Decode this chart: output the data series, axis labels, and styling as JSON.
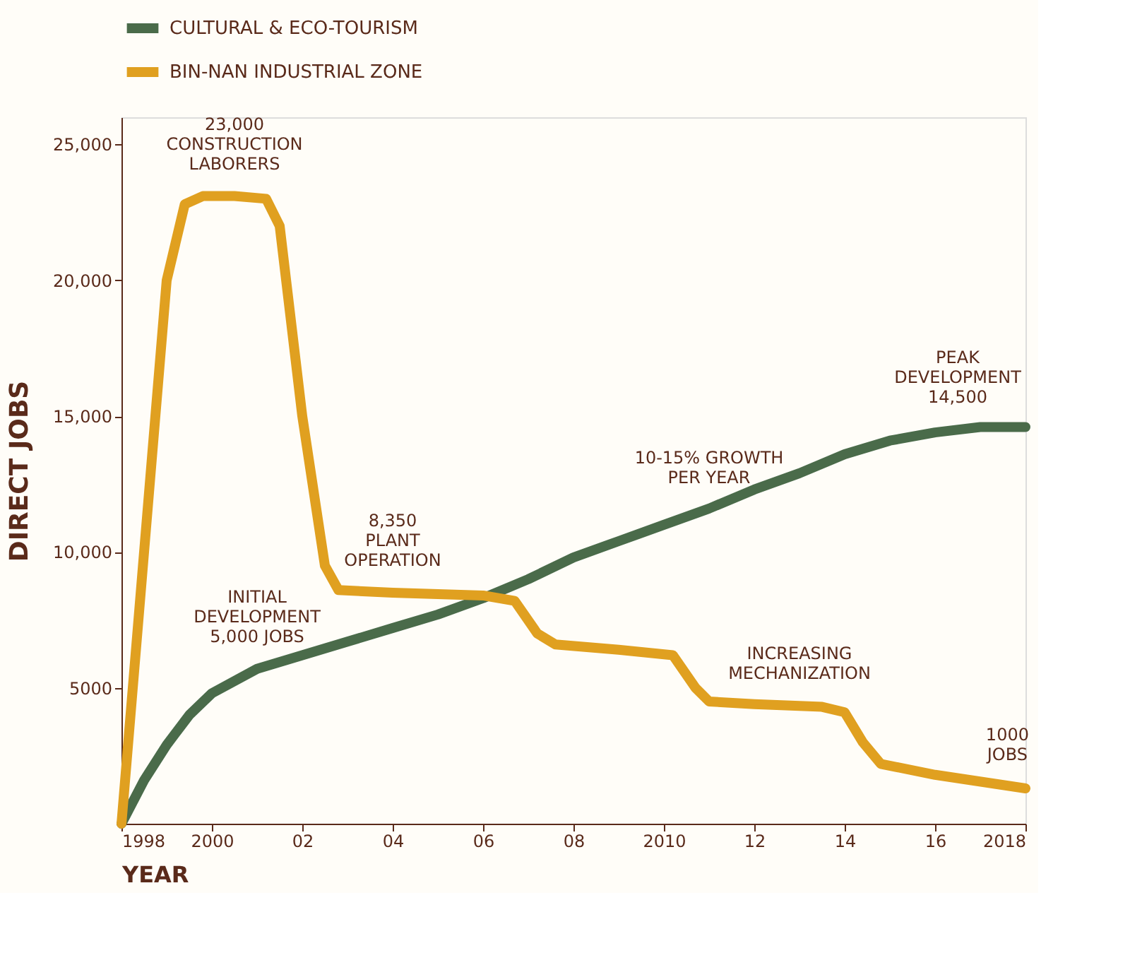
{
  "chart_data": {
    "type": "line",
    "xlabel": "YEAR",
    "ylabel": "DIRECT JOBS",
    "legend": "top",
    "grid": false,
    "marker": "none",
    "line_style": "solid",
    "xlim": [
      1998,
      2018
    ],
    "ylim": [
      0,
      26000
    ],
    "xticks": [
      1998,
      2000,
      {
        "value": 2002,
        "label": "02"
      },
      {
        "value": 2004,
        "label": "04"
      },
      {
        "value": 2006,
        "label": "06"
      },
      {
        "value": 2008,
        "label": "08"
      },
      2010,
      {
        "value": 2012,
        "label": "12"
      },
      {
        "value": 2014,
        "label": "14"
      },
      {
        "value": 2016,
        "label": "16"
      },
      2018
    ],
    "yticks": [
      5000,
      {
        "value": 10000,
        "label": "10,000"
      },
      {
        "value": 15000,
        "label": "15,000"
      },
      {
        "value": 20000,
        "label": "20,000"
      },
      {
        "value": 25000,
        "label": "25,000"
      }
    ],
    "series": [
      {
        "name": "CULTURAL & ECO-TOURISM",
        "color": "#4a6b4a",
        "x": [
          1998,
          1998.5,
          1999,
          1999.5,
          2000,
          2001,
          2002,
          2003,
          2004,
          2005,
          2006,
          2007,
          2008,
          2009,
          2010,
          2011,
          2012,
          2013,
          2014,
          2015,
          2016,
          2017,
          2018
        ],
        "values": [
          0,
          1600,
          2900,
          4000,
          4800,
          5700,
          6200,
          6700,
          7200,
          7700,
          8300,
          9000,
          9800,
          10400,
          11000,
          11600,
          12300,
          12900,
          13600,
          14100,
          14400,
          14600,
          14600
        ]
      },
      {
        "name": "BIN-NAN INDUSTRIAL ZONE",
        "color": "#e0a020",
        "x": [
          1998,
          1998.5,
          1999,
          1999.4,
          1999.8,
          2000.5,
          2001.2,
          2001.5,
          2002,
          2002.5,
          2002.8,
          2004,
          2006,
          2006.7,
          2007.2,
          2007.6,
          2009,
          2010.2,
          2010.7,
          2011,
          2012,
          2013.5,
          2014,
          2014.4,
          2014.8,
          2016,
          2018
        ],
        "values": [
          0,
          10000,
          20000,
          22800,
          23100,
          23100,
          23000,
          22000,
          15000,
          9500,
          8600,
          8500,
          8400,
          8200,
          7000,
          6600,
          6400,
          6200,
          5000,
          4500,
          4400,
          4300,
          4100,
          3000,
          2200,
          1800,
          1300
        ]
      }
    ],
    "annotations": [
      {
        "text": "23,000\nCONSTRUCTION\nLABORERS",
        "x": 2000.5,
        "y": 23100
      },
      {
        "text": "8,350\nPLANT\nOPERATION",
        "x": 2004,
        "y": 8500
      },
      {
        "text": "INITIAL\nDEVELOPMENT\n5,000 JOBS",
        "x": 2001,
        "y": 5700
      },
      {
        "text": "10-15% GROWTH\nPER YEAR",
        "x": 2011,
        "y": 11600
      },
      {
        "text": "PEAK\nDEVELOPMENT\n14,500",
        "x": 2016.5,
        "y": 14500
      },
      {
        "text": "INCREASING\nMECHANIZATION",
        "x": 2013,
        "y": 4400
      },
      {
        "text": "1000\nJOBS",
        "x": 2017.6,
        "y": 1400
      }
    ]
  }
}
